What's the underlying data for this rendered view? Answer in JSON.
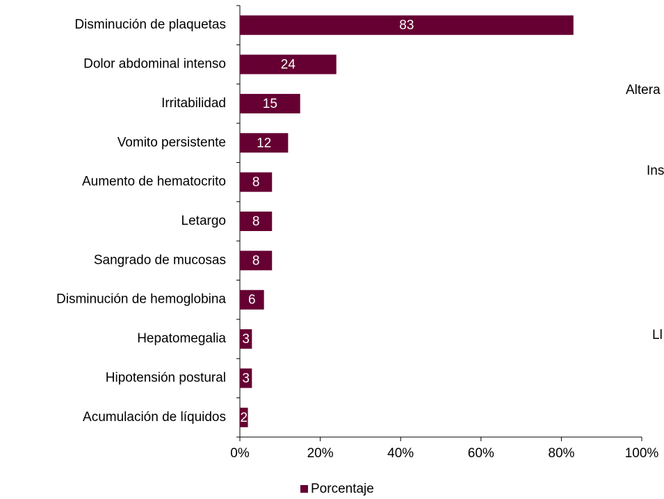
{
  "chart_data": {
    "type": "bar",
    "orientation": "horizontal",
    "categories": [
      "Disminución de plaquetas",
      "Dolor abdominal intenso",
      "Irritabilidad",
      "Vomito persistente",
      "Aumento de hematocrito",
      "Letargo",
      "Sangrado de mucosas",
      "Disminución de hemoglobina",
      "Hepatomegalia",
      "Hipotensión postural",
      "Acumulación de líquidos"
    ],
    "series": [
      {
        "name": "Porcentaje",
        "color": "#660033",
        "values": [
          83,
          24,
          15,
          12,
          8,
          8,
          8,
          6,
          3,
          3,
          2
        ]
      }
    ],
    "xlim": [
      0,
      100
    ],
    "xticks": [
      {
        "value": 0,
        "label": "0%"
      },
      {
        "value": 20,
        "label": "20%"
      },
      {
        "value": 40,
        "label": "40%"
      },
      {
        "value": 60,
        "label": "60%"
      },
      {
        "value": 80,
        "label": "80%"
      },
      {
        "value": 100,
        "label": "100%"
      }
    ],
    "legend": "bottom",
    "annotations": [
      "Altera",
      "Ins",
      "Ll"
    ]
  }
}
